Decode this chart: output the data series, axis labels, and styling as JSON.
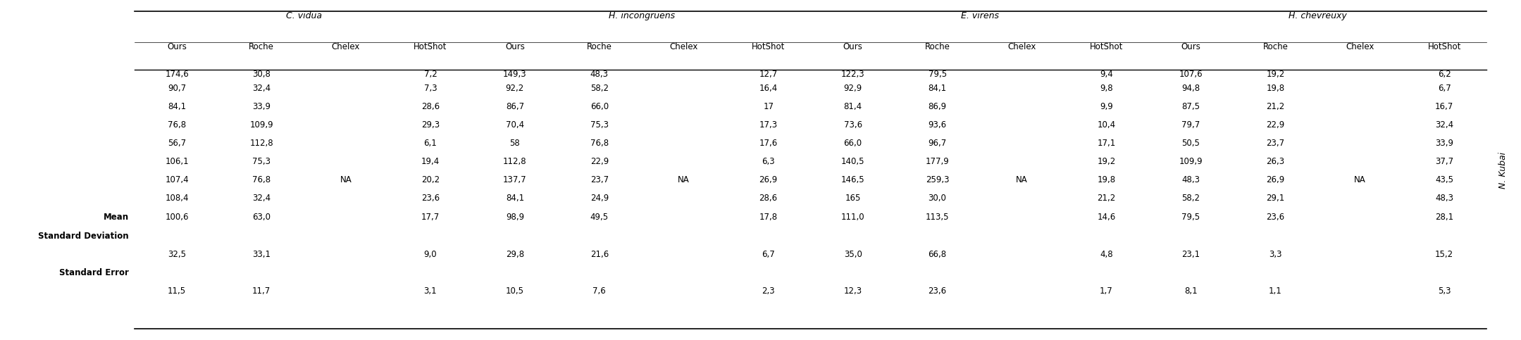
{
  "species": [
    "C. vidua",
    "H. incongruens",
    "E. virens",
    "H. chevreuxy"
  ],
  "sub_cols": [
    "Ours",
    "Roche",
    "Chelex",
    "HotShot"
  ],
  "data_rows": [
    [
      "174,6",
      "30,8",
      "",
      "7,2",
      "149,3",
      "48,3",
      "",
      "12,7",
      "122,3",
      "79,5",
      "",
      "9,4",
      "107,6",
      "19,2",
      "",
      "6,2"
    ],
    [
      "90,7",
      "32,4",
      "",
      "7,3",
      "92,2",
      "58,2",
      "",
      "16,4",
      "92,9",
      "84,1",
      "",
      "9,8",
      "94,8",
      "19,8",
      "",
      "6,7"
    ],
    [
      "84,1",
      "33,9",
      "",
      "28,6",
      "86,7",
      "66,0",
      "",
      "17",
      "81,4",
      "86,9",
      "",
      "9,9",
      "87,5",
      "21,2",
      "",
      "16,7"
    ],
    [
      "76,8",
      "109,9",
      "",
      "29,3",
      "70,4",
      "75,3",
      "",
      "17,3",
      "73,6",
      "93,6",
      "",
      "10,4",
      "79,7",
      "22,9",
      "",
      "32,4"
    ],
    [
      "56,7",
      "112,8",
      "",
      "6,1",
      "58",
      "76,8",
      "",
      "17,6",
      "66,0",
      "96,7",
      "",
      "17,1",
      "50,5",
      "23,7",
      "",
      "33,9"
    ],
    [
      "106,1",
      "75,3",
      "",
      "19,4",
      "112,8",
      "22,9",
      "",
      "6,3",
      "140,5",
      "177,9",
      "",
      "19,2",
      "109,9",
      "26,3",
      "",
      "37,7"
    ],
    [
      "107,4",
      "76,8",
      "NA",
      "20,2",
      "137,7",
      "23,7",
      "NA",
      "26,9",
      "146,5",
      "259,3",
      "NA",
      "19,8",
      "48,3",
      "26,9",
      "NA",
      "43,5"
    ],
    [
      "108,4",
      "32,4",
      "",
      "23,6",
      "84,1",
      "24,9",
      "",
      "28,6",
      "165",
      "30,0",
      "",
      "21,2",
      "58,2",
      "29,1",
      "",
      "48,3"
    ]
  ],
  "mean_row": [
    "100,6",
    "63,0",
    "",
    "17,7",
    "98,9",
    "49,5",
    "",
    "17,8",
    "111,0",
    "113,5",
    "",
    "14,6",
    "79,5",
    "23,6",
    "",
    "28,1"
  ],
  "std_row": [
    "32,5",
    "33,1",
    "",
    "9,0",
    "29,8",
    "21,6",
    "",
    "6,7",
    "35,0",
    "66,8",
    "",
    "4,8",
    "23,1",
    "3,3",
    "",
    "15,2"
  ],
  "se_row": [
    "11,5",
    "11,7",
    "",
    "3,1",
    "10,5",
    "7,6",
    "",
    "2,3",
    "12,3",
    "23,6",
    "",
    "1,7",
    "8,1",
    "1,1",
    "",
    "5,3"
  ],
  "right_label": "N. Kubai",
  "background_color": "#ffffff",
  "text_color": "#000000",
  "font_size": 8.5,
  "header_font_size": 9.0
}
